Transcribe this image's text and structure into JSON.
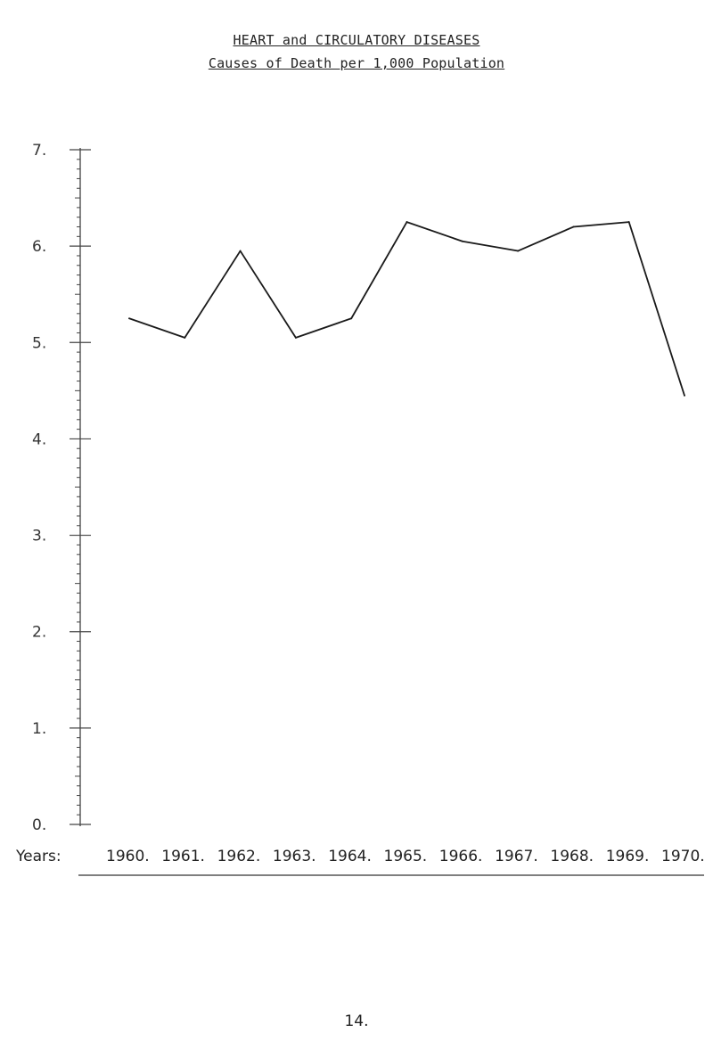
{
  "title": "HEART and CIRCULATORY DISEASES",
  "subtitle": "Causes of Death per 1,000 Population",
  "page_number": "14.",
  "chart_data": {
    "type": "line",
    "title": "HEART and CIRCULATORY DISEASES",
    "subtitle": "Causes of Death per 1,000 Population",
    "xlabel": "Years:",
    "ylabel": "",
    "categories": [
      "1960.",
      "1961.",
      "1962.",
      "1963.",
      "1964.",
      "1965.",
      "1966.",
      "1967.",
      "1968.",
      "1969.",
      "1970."
    ],
    "y_ticks": [
      "0.",
      "1.",
      "2.",
      "3.",
      "4.",
      "5.",
      "6.",
      "7."
    ],
    "ylim": [
      0,
      7
    ],
    "grid": false,
    "legend": "none",
    "series": [
      {
        "values": [
          5.25,
          5.05,
          5.95,
          5.05,
          5.25,
          6.25,
          6.05,
          5.95,
          6.2,
          6.25,
          4.45
        ]
      }
    ]
  }
}
